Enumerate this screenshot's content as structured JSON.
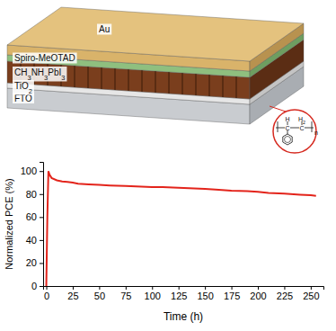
{
  "chart_data": {
    "type": "line",
    "x_label": "Time (h)",
    "y_label": "Normalized PCE (%)",
    "x": [
      0,
      1,
      2,
      3,
      5,
      10,
      15,
      20,
      25,
      30,
      40,
      50,
      60,
      75,
      90,
      100,
      110,
      125,
      140,
      150,
      160,
      175,
      190,
      200,
      210,
      225,
      240,
      250,
      255
    ],
    "values": [
      0,
      60,
      100,
      97,
      94,
      92,
      91,
      90.5,
      90,
      89,
      88.5,
      88,
      87.5,
      87,
      86.5,
      86,
      86,
      85.5,
      85,
      84.5,
      84,
      83,
      82.5,
      82,
      81,
      80.5,
      79.5,
      79,
      78.5
    ],
    "color": "#e3241b",
    "xlim": [
      -3,
      262
    ],
    "xticks": [
      0,
      25,
      50,
      75,
      100,
      125,
      150,
      175,
      200,
      225,
      250
    ],
    "ylim": [
      0,
      108
    ],
    "yticks": [
      0,
      20,
      40,
      60,
      80,
      100
    ],
    "grid": false
  },
  "diagram": {
    "layers": [
      "FTO",
      "TiO2",
      "CH3NH3PbI3",
      "Spiro-MeOTAD",
      "Au"
    ],
    "polymer": {
      "labels": [
        "H",
        "C",
        "H2",
        "C"
      ],
      "repeat": "n"
    }
  }
}
